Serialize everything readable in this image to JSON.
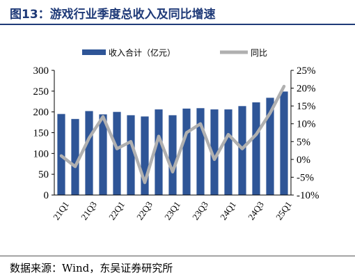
{
  "figure": {
    "title": "图13：游戏行业季度总收入及同比增速",
    "source": "数据来源：Wind，东吴证券研究所"
  },
  "colors": {
    "bar": "#2e5597",
    "line": "#b0b0b0",
    "title": "#1f3a78"
  },
  "chart_data": {
    "type": "bar",
    "categories": [
      "21Q1",
      "21Q2",
      "21Q3",
      "21Q4",
      "22Q1",
      "22Q2",
      "22Q3",
      "22Q4",
      "23Q1",
      "23Q2",
      "23Q3",
      "23Q4",
      "24Q1",
      "24Q2",
      "24Q3",
      "24Q4",
      "25Q1"
    ],
    "x_tick_labels": [
      "21Q1",
      "21Q3",
      "22Q1",
      "22Q3",
      "23Q1",
      "23Q3",
      "24Q1",
      "24Q3",
      "25Q1"
    ],
    "series": [
      {
        "name": "收入合计（亿元）",
        "type": "bar",
        "axis": "left",
        "values": [
          195,
          183,
          202,
          194,
          200,
          192,
          189,
          206,
          192,
          208,
          209,
          206,
          206,
          214,
          223,
          234,
          249
        ]
      },
      {
        "name": "同比",
        "type": "line",
        "axis": "right",
        "unit": "%",
        "values": [
          1.0,
          -2.0,
          6.0,
          12.0,
          3.0,
          5.0,
          -6.5,
          6.5,
          -3.5,
          7.5,
          10.0,
          0.0,
          7.0,
          3.0,
          7.0,
          13.0,
          20.5
        ]
      }
    ],
    "y_left": {
      "lim": [
        0,
        300
      ],
      "ticks": [
        0,
        50,
        100,
        150,
        200,
        250,
        300
      ]
    },
    "y_right": {
      "lim": [
        -10,
        25
      ],
      "ticks": [
        -10,
        -5,
        0,
        5,
        10,
        15,
        20,
        25
      ],
      "tick_labels": [
        "-10%",
        "-5%",
        "0%",
        "5%",
        "10%",
        "15%",
        "20%",
        "25%"
      ]
    },
    "legend_position": "top-center",
    "grid": false
  }
}
